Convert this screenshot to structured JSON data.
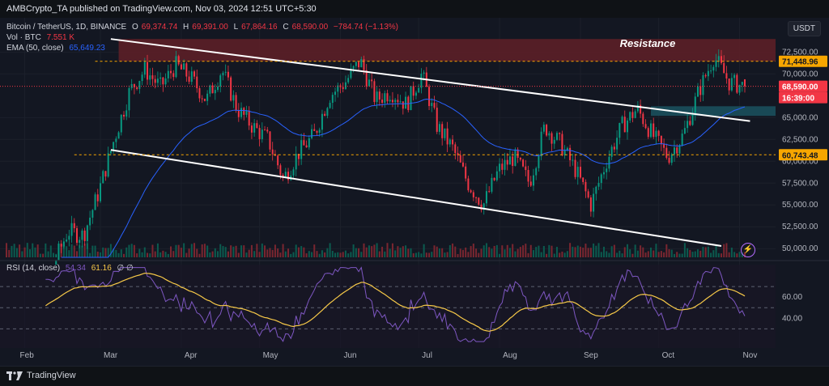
{
  "header": {
    "published": "AMBCrypto_TA published on TradingView.com, Nov 03, 2024 12:51 UTC+5:30"
  },
  "legend": {
    "symbol": "Bitcoin / TetherUS, 1D, BINANCE",
    "o_label": "O",
    "o_value": "69,374.74",
    "h_label": "H",
    "h_value": "69,391.00",
    "l_label": "L",
    "l_value": "67,864.16",
    "c_label": "C",
    "c_value": "68,590.00",
    "change": "−784.74 (−1.13%)",
    "vol_label": "Vol · BTC",
    "vol_value": "7.551 K",
    "ema_label": "EMA (50, close)",
    "ema_value": "65,649.23",
    "rsi_label": "RSI (14, close)",
    "rsi_value1": "54.34",
    "rsi_value2": "61.16",
    "rsi_extra": "∅ ∅"
  },
  "currency_button": "USDT",
  "annotation": "Resistance",
  "price_axis": [
    "72,500.00",
    "70,000.00",
    "65,000.00",
    "62,500.00",
    "60,000.00",
    "57,500.00",
    "55,000.00",
    "52,500.00",
    "50,000.00"
  ],
  "price_labels": {
    "level_high": "71,448.96",
    "current": "68,590.00",
    "countdown": "16:39:00",
    "level_low": "60,743.48"
  },
  "rsi_axis": [
    "60.00",
    "40.00"
  ],
  "time_axis": [
    "Feb",
    "Mar",
    "Apr",
    "May",
    "Jun",
    "Jul",
    "Aug",
    "Sep",
    "Oct",
    "Nov"
  ],
  "footer": {
    "brand": "TradingView"
  },
  "colors": {
    "up": "#089981",
    "down": "#f23645",
    "ema": "#2962ff",
    "rsi": "#7e57c2",
    "rsi_ma": "#f7c948",
    "resistance_zone": "#5c1f27",
    "support_zone": "#1b4f5c"
  },
  "chart_data": {
    "type": "candlestick",
    "symbol": "BTCUSDT",
    "timeframe": "1D",
    "x_range": [
      "2024-01-25",
      "2024-11-03"
    ],
    "y_range": [
      49000,
      75500
    ],
    "closes_weekly": [
      40000,
      43000,
      43500,
      48000,
      52000,
      51500,
      56500,
      62500,
      68000,
      70500,
      68500,
      71000,
      69500,
      67000,
      70500,
      66000,
      64000,
      62500,
      58000,
      61000,
      63000,
      67500,
      69000,
      71500,
      67000,
      68000,
      66500,
      70000,
      64000,
      61500,
      57500,
      55000,
      59000,
      60500,
      57500,
      64000,
      62000,
      59000,
      55000,
      60000,
      64000,
      66000,
      63000,
      60500,
      63000,
      68000,
      72000,
      69000,
      68590
    ],
    "resistance_zone": [
      71450,
      74000
    ],
    "support_zone": [
      65200,
      66300
    ],
    "horizontal_levels": [
      71448.96,
      60743.48
    ],
    "channel_upper": [
      {
        "x": "2024-03-05",
        "y": 74000
      },
      {
        "x": "2024-11-05",
        "y": 64600
      }
    ],
    "channel_lower": [
      {
        "x": "2024-03-05",
        "y": 61300
      },
      {
        "x": "2024-10-25",
        "y": 50300
      }
    ],
    "last": {
      "open": 69374.74,
      "high": 69391.0,
      "low": 67864.16,
      "close": 68590.0,
      "ema50": 65649.23
    },
    "rsi": {
      "period": 14,
      "value": 54.34,
      "ma": 61.16,
      "levels": [
        70,
        50,
        30
      ]
    }
  }
}
